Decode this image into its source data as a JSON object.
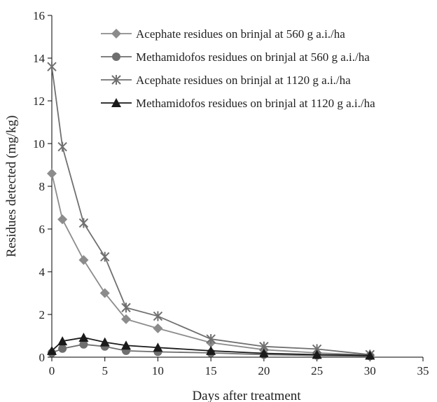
{
  "chart_data": {
    "type": "line",
    "title": "",
    "xlabel": "Days after treatment",
    "ylabel": "Residues detected (mg/kg)",
    "xlim": [
      0,
      35
    ],
    "ylim": [
      0,
      16
    ],
    "xticks": [
      0,
      5,
      10,
      15,
      20,
      25,
      30,
      35
    ],
    "yticks": [
      0,
      2,
      4,
      6,
      8,
      10,
      12,
      14,
      16
    ],
    "grid": false,
    "legend_position": "top-right",
    "series": [
      {
        "name": "Acephate residues on brinjal at 560 g a.i./ha",
        "marker": "diamond",
        "color": "#8c8c8c",
        "x": [
          0,
          1,
          3,
          5,
          7,
          10,
          15,
          20,
          25,
          30
        ],
        "y": [
          8.6,
          6.45,
          4.55,
          3.0,
          1.78,
          1.35,
          0.68,
          0.35,
          0.2,
          0.1
        ]
      },
      {
        "name": "Methamidofos residues on brinjal at 560 g a.i./ha",
        "marker": "circle",
        "color": "#6e6e6e",
        "x": [
          0,
          1,
          3,
          5,
          7,
          10,
          15,
          20,
          25,
          30
        ],
        "y": [
          0.2,
          0.4,
          0.6,
          0.5,
          0.3,
          0.25,
          0.2,
          0.12,
          0.08,
          0.05
        ]
      },
      {
        "name": "Acephate residues on brinjal at 1120 g a.i./ha",
        "marker": "star",
        "color": "#707070",
        "x": [
          0,
          1,
          3,
          5,
          7,
          10,
          15,
          20,
          25,
          30
        ],
        "y": [
          13.6,
          9.85,
          6.28,
          4.7,
          2.32,
          1.92,
          0.85,
          0.5,
          0.38,
          0.12
        ]
      },
      {
        "name": "Methamidofos residues on brinjal at 1120 g a.i./ha",
        "marker": "triangle",
        "color": "#1a1a1a",
        "x": [
          0,
          1,
          3,
          5,
          7,
          10,
          15,
          20,
          25,
          30
        ],
        "y": [
          0.3,
          0.75,
          0.92,
          0.7,
          0.55,
          0.45,
          0.3,
          0.18,
          0.12,
          0.08
        ]
      }
    ]
  }
}
